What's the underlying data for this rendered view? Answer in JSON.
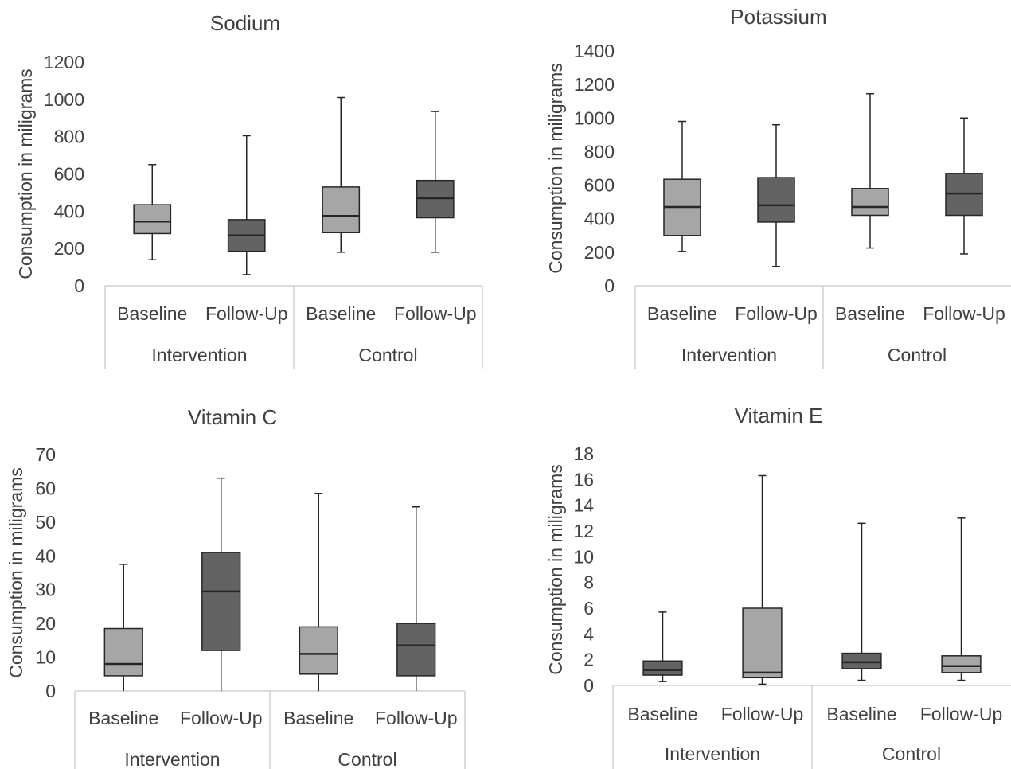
{
  "colors": {
    "light": "#a6a6a6",
    "dark": "#636363",
    "stroke": "#262626",
    "axis": "#d0d0d0",
    "text": "#404040"
  },
  "chart_data": [
    {
      "type": "boxplot",
      "title": "Sodium",
      "ylabel": "Consumption in miligrams",
      "ylim": [
        0,
        1200
      ],
      "yticks": [
        "0",
        "200",
        "400",
        "600",
        "800",
        "1000",
        "1200"
      ],
      "categories": [
        "Baseline",
        "Follow-Up",
        "Baseline",
        "Follow-Up"
      ],
      "groups": [
        "Intervention",
        "Control"
      ],
      "boxes": [
        {
          "min": 140,
          "q1": 280,
          "median": 345,
          "q3": 435,
          "max": 650,
          "shade": "light"
        },
        {
          "min": 60,
          "q1": 185,
          "median": 270,
          "q3": 355,
          "max": 805,
          "shade": "dark"
        },
        {
          "min": 180,
          "q1": 285,
          "median": 375,
          "q3": 530,
          "max": 1010,
          "shade": "light"
        },
        {
          "min": 180,
          "q1": 365,
          "median": 470,
          "q3": 565,
          "max": 935,
          "shade": "dark"
        }
      ]
    },
    {
      "type": "boxplot",
      "title": "Potassium",
      "ylabel": "Consumption in miligrams",
      "ylim": [
        0,
        1400
      ],
      "yticks": [
        "0",
        "200",
        "400",
        "600",
        "800",
        "1000",
        "1200",
        "1400"
      ],
      "categories": [
        "Baseline",
        "Follow-Up",
        "Baseline",
        "Follow-Up"
      ],
      "groups": [
        "Intervention",
        "Control"
      ],
      "boxes": [
        {
          "min": 205,
          "q1": 300,
          "median": 470,
          "q3": 635,
          "max": 980,
          "shade": "light"
        },
        {
          "min": 115,
          "q1": 380,
          "median": 480,
          "q3": 645,
          "max": 960,
          "shade": "dark"
        },
        {
          "min": 225,
          "q1": 420,
          "median": 470,
          "q3": 580,
          "max": 1145,
          "shade": "light"
        },
        {
          "min": 190,
          "q1": 420,
          "median": 550,
          "q3": 670,
          "max": 1000,
          "shade": "dark"
        }
      ]
    },
    {
      "type": "boxplot",
      "title": "Vitamin C",
      "ylabel": "Consumption in miligrams",
      "ylim": [
        0,
        70
      ],
      "yticks": [
        "0",
        "10",
        "20",
        "30",
        "40",
        "50",
        "60",
        "70"
      ],
      "categories": [
        "Baseline",
        "Follow-Up",
        "Baseline",
        "Follow-Up"
      ],
      "groups": [
        "Intervention",
        "Control"
      ],
      "boxes": [
        {
          "min": 0,
          "q1": 4.5,
          "median": 8,
          "q3": 18.5,
          "max": 37.5,
          "shade": "light"
        },
        {
          "min": 0,
          "q1": 12,
          "median": 29.5,
          "q3": 41,
          "max": 63,
          "shade": "dark"
        },
        {
          "min": 0,
          "q1": 5,
          "median": 11,
          "q3": 19,
          "max": 58.5,
          "shade": "light"
        },
        {
          "min": 0,
          "q1": 4.5,
          "median": 13.5,
          "q3": 20,
          "max": 54.5,
          "shade": "dark"
        }
      ]
    },
    {
      "type": "boxplot",
      "title": "Vitamin E",
      "ylabel": "Consumption in miligrams",
      "ylim": [
        0,
        18
      ],
      "yticks": [
        "0",
        "2",
        "4",
        "6",
        "8",
        "10",
        "12",
        "14",
        "16",
        "18"
      ],
      "categories": [
        "Baseline",
        "Follow-Up",
        "Baseline",
        "Follow-Up"
      ],
      "groups": [
        "Intervention",
        "Control"
      ],
      "boxes": [
        {
          "min": 0.3,
          "q1": 0.8,
          "median": 1.2,
          "q3": 1.9,
          "max": 5.7,
          "shade": "dark"
        },
        {
          "min": 0.1,
          "q1": 0.6,
          "median": 1.0,
          "q3": 6.0,
          "max": 16.3,
          "shade": "light"
        },
        {
          "min": 0.4,
          "q1": 1.3,
          "median": 1.8,
          "q3": 2.5,
          "max": 12.6,
          "shade": "dark"
        },
        {
          "min": 0.4,
          "q1": 1.0,
          "median": 1.5,
          "q3": 2.3,
          "max": 13.0,
          "shade": "light"
        }
      ]
    }
  ]
}
